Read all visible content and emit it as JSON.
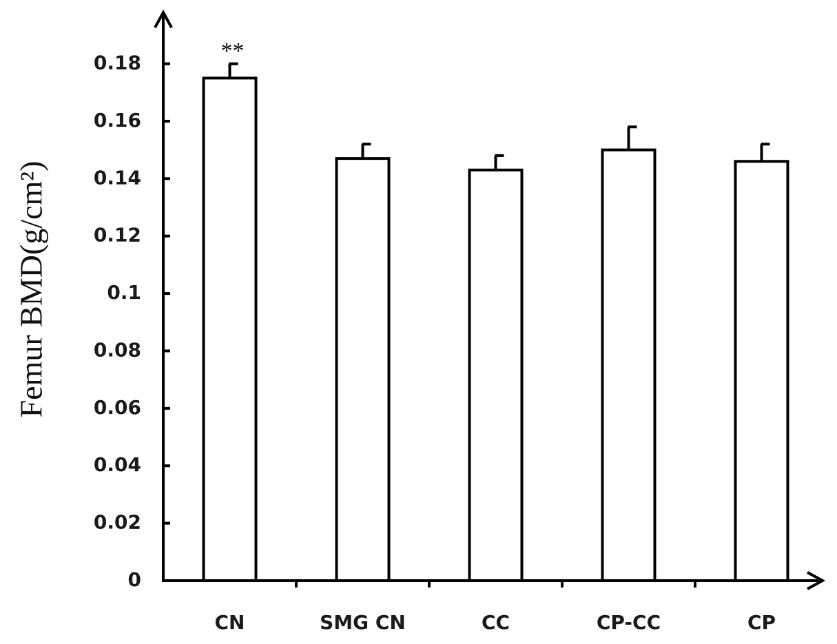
{
  "chart_data": {
    "type": "bar",
    "y_label": "Femur BMD(g/cm²)",
    "annotation": "**",
    "categories": [
      "CN",
      "SMG CN",
      "CC",
      "CP-CC",
      "CP"
    ],
    "values": [
      0.175,
      0.147,
      0.143,
      0.15,
      0.146
    ],
    "errors": [
      0.005,
      0.005,
      0.005,
      0.008,
      0.006
    ],
    "color": "#ffffff",
    "ylim": [
      0,
      0.195
    ],
    "yticks": [
      0,
      0.02,
      0.04,
      0.06,
      0.08,
      0.1,
      0.12,
      0.14,
      0.16,
      0.18
    ],
    "grid": false
  }
}
